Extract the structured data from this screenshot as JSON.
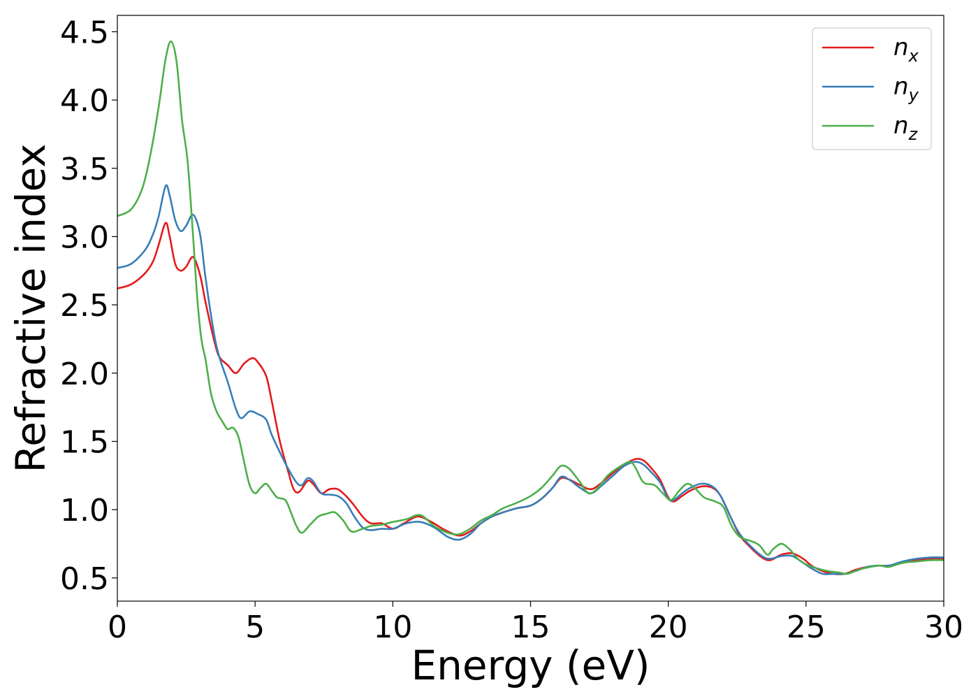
{
  "chart_data": {
    "type": "line",
    "xlabel": "Energy (eV)",
    "ylabel": "Refractive index",
    "xlim": [
      0,
      30
    ],
    "ylim": [
      0.33,
      4.62
    ],
    "x_ticks": [
      "0",
      "5",
      "10",
      "15",
      "20",
      "25",
      "30"
    ],
    "y_ticks": [
      "0.5",
      "1.0",
      "1.5",
      "2.0",
      "2.5",
      "3.0",
      "3.5",
      "4.0",
      "4.5"
    ],
    "grid": false,
    "legend_position": "top-right",
    "series": [
      {
        "name": "n_x",
        "legend_base": "n",
        "legend_sub": "x",
        "color": "#e41a1c",
        "points": [
          [
            0,
            2.62
          ],
          [
            0.5,
            2.65
          ],
          [
            1,
            2.73
          ],
          [
            1.3,
            2.82
          ],
          [
            1.5,
            2.94
          ],
          [
            1.75,
            3.1
          ],
          [
            1.9,
            3.0
          ],
          [
            2.1,
            2.8
          ],
          [
            2.3,
            2.75
          ],
          [
            2.5,
            2.78
          ],
          [
            2.75,
            2.85
          ],
          [
            3.0,
            2.72
          ],
          [
            3.2,
            2.52
          ],
          [
            3.5,
            2.25
          ],
          [
            3.7,
            2.12
          ],
          [
            4.0,
            2.06
          ],
          [
            4.3,
            2.0
          ],
          [
            4.6,
            2.07
          ],
          [
            4.9,
            2.11
          ],
          [
            5.1,
            2.08
          ],
          [
            5.4,
            1.98
          ],
          [
            5.6,
            1.8
          ],
          [
            5.9,
            1.5
          ],
          [
            6.2,
            1.28
          ],
          [
            6.4,
            1.15
          ],
          [
            6.6,
            1.13
          ],
          [
            6.9,
            1.21
          ],
          [
            7.1,
            1.19
          ],
          [
            7.4,
            1.12
          ],
          [
            7.7,
            1.15
          ],
          [
            8.0,
            1.15
          ],
          [
            8.3,
            1.1
          ],
          [
            8.6,
            1.03
          ],
          [
            8.9,
            0.95
          ],
          [
            9.2,
            0.9
          ],
          [
            9.6,
            0.9
          ],
          [
            10.0,
            0.86
          ],
          [
            10.4,
            0.9
          ],
          [
            10.9,
            0.95
          ],
          [
            11.4,
            0.91
          ],
          [
            11.9,
            0.85
          ],
          [
            12.4,
            0.81
          ],
          [
            12.8,
            0.84
          ],
          [
            13.2,
            0.9
          ],
          [
            13.6,
            0.95
          ],
          [
            14.0,
            0.98
          ],
          [
            14.5,
            1.01
          ],
          [
            15.0,
            1.03
          ],
          [
            15.4,
            1.08
          ],
          [
            15.8,
            1.16
          ],
          [
            16.1,
            1.23
          ],
          [
            16.4,
            1.22
          ],
          [
            16.8,
            1.18
          ],
          [
            17.2,
            1.15
          ],
          [
            17.6,
            1.2
          ],
          [
            18.0,
            1.27
          ],
          [
            18.4,
            1.33
          ],
          [
            18.8,
            1.37
          ],
          [
            19.1,
            1.36
          ],
          [
            19.4,
            1.3
          ],
          [
            19.7,
            1.22
          ],
          [
            20.0,
            1.09
          ],
          [
            20.2,
            1.06
          ],
          [
            20.5,
            1.1
          ],
          [
            20.8,
            1.14
          ],
          [
            21.2,
            1.17
          ],
          [
            21.6,
            1.16
          ],
          [
            21.9,
            1.1
          ],
          [
            22.3,
            0.93
          ],
          [
            22.6,
            0.81
          ],
          [
            23.0,
            0.72
          ],
          [
            23.4,
            0.65
          ],
          [
            23.7,
            0.63
          ],
          [
            24.1,
            0.67
          ],
          [
            24.5,
            0.68
          ],
          [
            24.9,
            0.64
          ],
          [
            25.2,
            0.59
          ],
          [
            25.6,
            0.55
          ],
          [
            26.0,
            0.53
          ],
          [
            26.4,
            0.53
          ],
          [
            26.8,
            0.56
          ],
          [
            27.2,
            0.58
          ],
          [
            27.6,
            0.59
          ],
          [
            28.0,
            0.59
          ],
          [
            28.5,
            0.61
          ],
          [
            29.0,
            0.63
          ],
          [
            29.5,
            0.64
          ],
          [
            30.0,
            0.64
          ]
        ]
      },
      {
        "name": "n_y",
        "legend_base": "n",
        "legend_sub": "y",
        "color": "#377eb8",
        "points": [
          [
            0,
            2.77
          ],
          [
            0.5,
            2.8
          ],
          [
            1,
            2.9
          ],
          [
            1.3,
            3.02
          ],
          [
            1.5,
            3.15
          ],
          [
            1.75,
            3.37
          ],
          [
            1.9,
            3.3
          ],
          [
            2.1,
            3.12
          ],
          [
            2.3,
            3.04
          ],
          [
            2.5,
            3.08
          ],
          [
            2.75,
            3.16
          ],
          [
            3.0,
            3.02
          ],
          [
            3.2,
            2.7
          ],
          [
            3.5,
            2.3
          ],
          [
            3.7,
            2.12
          ],
          [
            4.0,
            1.94
          ],
          [
            4.3,
            1.74
          ],
          [
            4.5,
            1.67
          ],
          [
            4.8,
            1.72
          ],
          [
            5.1,
            1.7
          ],
          [
            5.4,
            1.66
          ],
          [
            5.6,
            1.55
          ],
          [
            5.9,
            1.42
          ],
          [
            6.2,
            1.3
          ],
          [
            6.5,
            1.2
          ],
          [
            6.7,
            1.18
          ],
          [
            6.9,
            1.23
          ],
          [
            7.1,
            1.21
          ],
          [
            7.4,
            1.12
          ],
          [
            7.7,
            1.11
          ],
          [
            8.0,
            1.1
          ],
          [
            8.3,
            1.05
          ],
          [
            8.6,
            0.95
          ],
          [
            8.9,
            0.87
          ],
          [
            9.2,
            0.85
          ],
          [
            9.6,
            0.86
          ],
          [
            10.0,
            0.86
          ],
          [
            10.5,
            0.9
          ],
          [
            11.0,
            0.91
          ],
          [
            11.5,
            0.87
          ],
          [
            12.0,
            0.8
          ],
          [
            12.4,
            0.78
          ],
          [
            12.8,
            0.82
          ],
          [
            13.2,
            0.9
          ],
          [
            13.6,
            0.95
          ],
          [
            14.0,
            0.98
          ],
          [
            14.5,
            1.01
          ],
          [
            15.0,
            1.03
          ],
          [
            15.4,
            1.08
          ],
          [
            15.8,
            1.16
          ],
          [
            16.1,
            1.24
          ],
          [
            16.4,
            1.22
          ],
          [
            16.8,
            1.16
          ],
          [
            17.2,
            1.12
          ],
          [
            17.6,
            1.18
          ],
          [
            18.0,
            1.25
          ],
          [
            18.4,
            1.32
          ],
          [
            18.8,
            1.35
          ],
          [
            19.1,
            1.33
          ],
          [
            19.4,
            1.27
          ],
          [
            19.7,
            1.2
          ],
          [
            20.0,
            1.08
          ],
          [
            20.2,
            1.07
          ],
          [
            20.5,
            1.12
          ],
          [
            20.8,
            1.16
          ],
          [
            21.2,
            1.19
          ],
          [
            21.6,
            1.17
          ],
          [
            21.9,
            1.1
          ],
          [
            22.3,
            0.93
          ],
          [
            22.6,
            0.82
          ],
          [
            23.0,
            0.73
          ],
          [
            23.4,
            0.66
          ],
          [
            23.7,
            0.64
          ],
          [
            24.1,
            0.66
          ],
          [
            24.5,
            0.66
          ],
          [
            24.9,
            0.61
          ],
          [
            25.2,
            0.57
          ],
          [
            25.6,
            0.53
          ],
          [
            26.0,
            0.53
          ],
          [
            26.4,
            0.53
          ],
          [
            26.8,
            0.55
          ],
          [
            27.2,
            0.58
          ],
          [
            27.6,
            0.59
          ],
          [
            28.0,
            0.59
          ],
          [
            28.5,
            0.62
          ],
          [
            29.0,
            0.64
          ],
          [
            29.5,
            0.65
          ],
          [
            30.0,
            0.65
          ]
        ]
      },
      {
        "name": "n_z",
        "legend_base": "n",
        "legend_sub": "z",
        "color": "#4daf4a",
        "points": [
          [
            0,
            3.15
          ],
          [
            0.5,
            3.2
          ],
          [
            0.9,
            3.35
          ],
          [
            1.2,
            3.6
          ],
          [
            1.5,
            3.95
          ],
          [
            1.75,
            4.3
          ],
          [
            1.95,
            4.43
          ],
          [
            2.15,
            4.28
          ],
          [
            2.35,
            3.85
          ],
          [
            2.55,
            3.55
          ],
          [
            2.75,
            3.0
          ],
          [
            2.9,
            2.55
          ],
          [
            3.05,
            2.25
          ],
          [
            3.2,
            2.1
          ],
          [
            3.4,
            1.85
          ],
          [
            3.6,
            1.72
          ],
          [
            3.8,
            1.65
          ],
          [
            4.0,
            1.59
          ],
          [
            4.2,
            1.6
          ],
          [
            4.4,
            1.53
          ],
          [
            4.6,
            1.35
          ],
          [
            4.8,
            1.18
          ],
          [
            5.0,
            1.12
          ],
          [
            5.2,
            1.16
          ],
          [
            5.4,
            1.19
          ],
          [
            5.6,
            1.14
          ],
          [
            5.8,
            1.09
          ],
          [
            6.1,
            1.07
          ],
          [
            6.3,
            0.98
          ],
          [
            6.5,
            0.88
          ],
          [
            6.7,
            0.83
          ],
          [
            7.0,
            0.89
          ],
          [
            7.3,
            0.95
          ],
          [
            7.6,
            0.97
          ],
          [
            7.9,
            0.98
          ],
          [
            8.2,
            0.92
          ],
          [
            8.5,
            0.84
          ],
          [
            8.9,
            0.86
          ],
          [
            9.2,
            0.88
          ],
          [
            9.6,
            0.89
          ],
          [
            10.0,
            0.91
          ],
          [
            10.5,
            0.93
          ],
          [
            11.0,
            0.96
          ],
          [
            11.5,
            0.88
          ],
          [
            12.0,
            0.83
          ],
          [
            12.4,
            0.82
          ],
          [
            12.8,
            0.86
          ],
          [
            13.2,
            0.92
          ],
          [
            13.6,
            0.96
          ],
          [
            14.0,
            1.01
          ],
          [
            14.5,
            1.05
          ],
          [
            15.0,
            1.1
          ],
          [
            15.4,
            1.16
          ],
          [
            15.8,
            1.25
          ],
          [
            16.1,
            1.32
          ],
          [
            16.4,
            1.3
          ],
          [
            16.8,
            1.2
          ],
          [
            17.1,
            1.12
          ],
          [
            17.4,
            1.15
          ],
          [
            17.8,
            1.25
          ],
          [
            18.2,
            1.31
          ],
          [
            18.6,
            1.35
          ],
          [
            18.8,
            1.31
          ],
          [
            19.1,
            1.2
          ],
          [
            19.5,
            1.18
          ],
          [
            19.8,
            1.12
          ],
          [
            20.1,
            1.07
          ],
          [
            20.4,
            1.14
          ],
          [
            20.7,
            1.19
          ],
          [
            21.0,
            1.15
          ],
          [
            21.3,
            1.09
          ],
          [
            21.7,
            1.06
          ],
          [
            22.0,
            1.02
          ],
          [
            22.3,
            0.88
          ],
          [
            22.6,
            0.8
          ],
          [
            23.0,
            0.77
          ],
          [
            23.3,
            0.74
          ],
          [
            23.6,
            0.67
          ],
          [
            23.8,
            0.71
          ],
          [
            24.1,
            0.75
          ],
          [
            24.4,
            0.71
          ],
          [
            24.7,
            0.64
          ],
          [
            25.0,
            0.6
          ],
          [
            25.4,
            0.57
          ],
          [
            25.8,
            0.55
          ],
          [
            26.2,
            0.54
          ],
          [
            26.5,
            0.53
          ],
          [
            26.9,
            0.56
          ],
          [
            27.3,
            0.58
          ],
          [
            27.7,
            0.59
          ],
          [
            28.0,
            0.58
          ],
          [
            28.5,
            0.61
          ],
          [
            29.0,
            0.62
          ],
          [
            29.5,
            0.63
          ],
          [
            30.0,
            0.63
          ]
        ]
      }
    ]
  }
}
